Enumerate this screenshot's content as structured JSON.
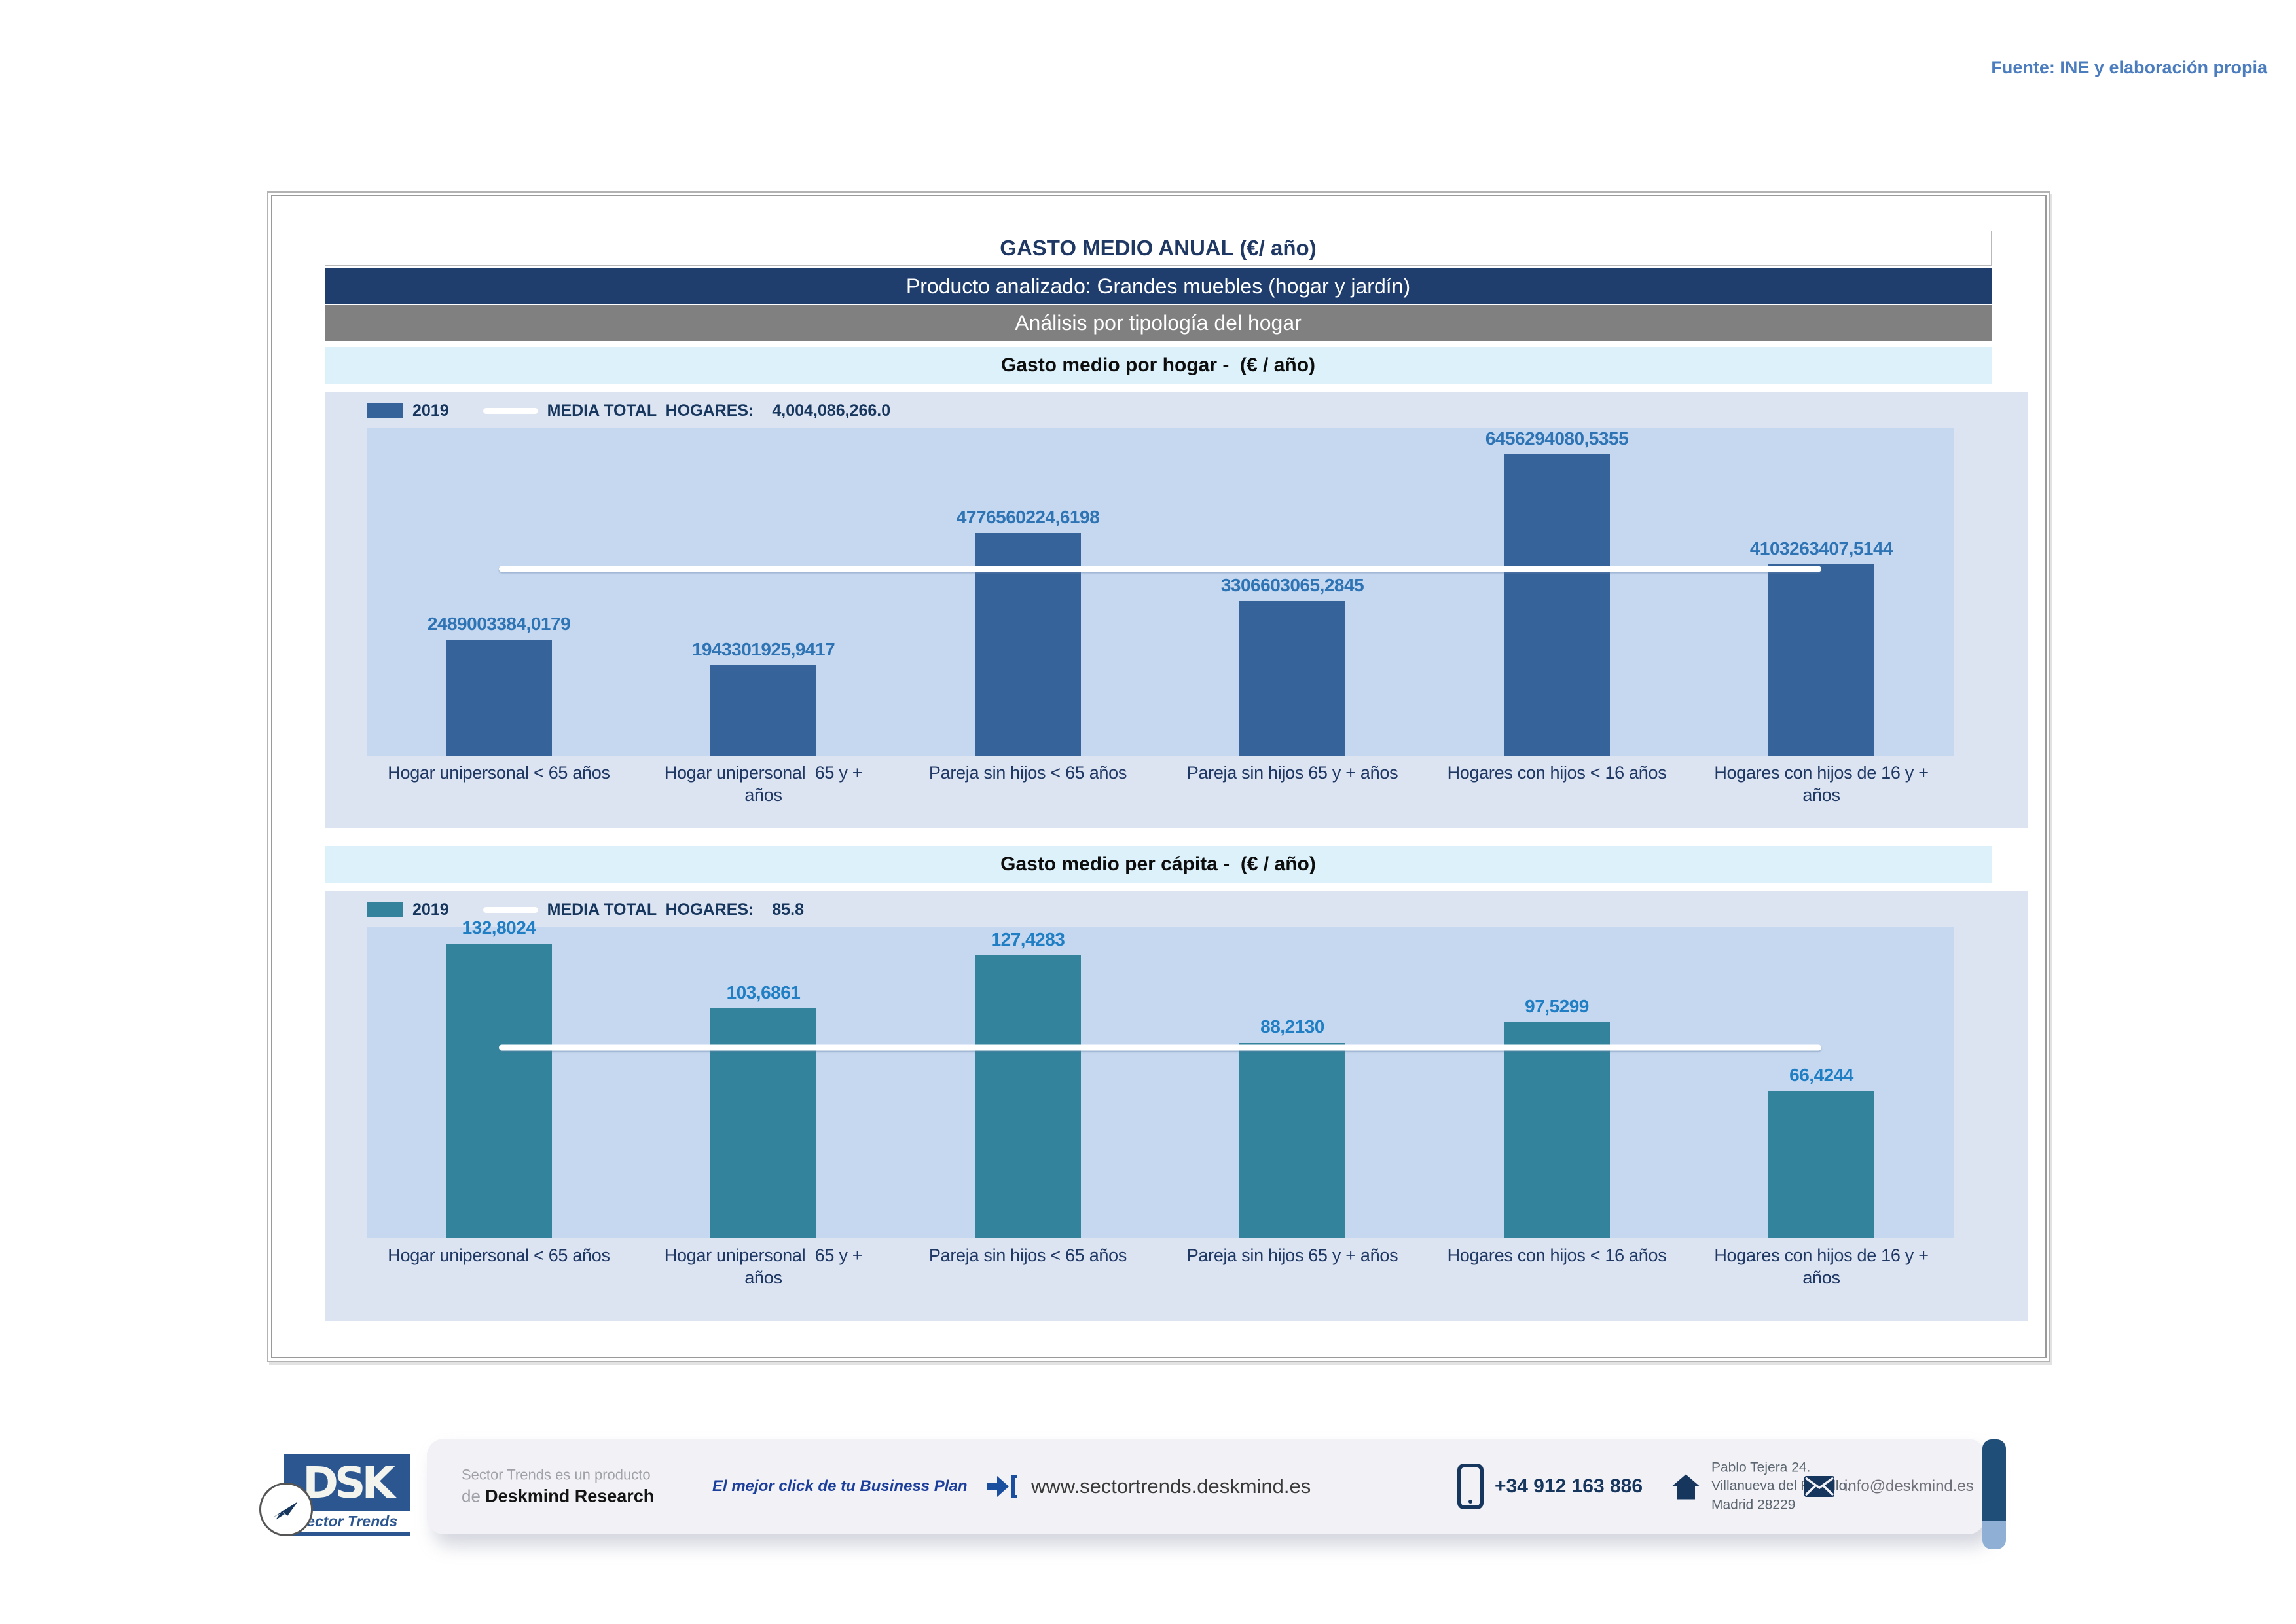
{
  "page": {
    "source_note": "Fuente: INE y elaboración propia"
  },
  "header": {
    "title": "GASTO MEDIO ANUAL (€/ año)",
    "product_banner": "Producto analizado: Grandes muebles (hogar y jardín)",
    "analysis_banner": "Análisis por tipología del hogar"
  },
  "colors": {
    "banner_navy": "#1F3E6E",
    "banner_gray": "#808080",
    "section_cyan": "#DCF1FA",
    "chart_outer_bg": "#DCE4F2",
    "chart_inner_bg": "#C6D8EF",
    "media_line": "#FFFFFF",
    "category_label": "#1F3864",
    "source_note": "#4A7CBE",
    "footer_icon_navy": "#17365D"
  },
  "chart_data": [
    {
      "type": "bar",
      "section_title": "Gasto medio por hogar -  (€ / año)",
      "legend": {
        "series_label": "2019",
        "media_label": "MEDIA TOTAL  HOGARES:",
        "media_value_label": "4,004,086,266.0"
      },
      "categories": [
        "Hogar unipersonal < 65 años",
        "Hogar unipersonal  65 y + años",
        "Pareja sin hijos < 65 años",
        "Pareja sin hijos 65 y + años",
        "Hogares con hijos < 16 años",
        "Hogares con hijos de 16 y + años"
      ],
      "series": [
        {
          "name": "2019",
          "values": [
            2489003384.0179,
            1943301925.9417,
            4776560224.6198,
            3306603065.2845,
            6456294080.5355,
            4103263407.5144
          ]
        }
      ],
      "value_labels": [
        "2489003384,0179",
        "1943301925,9417",
        "4776560224,6198",
        "3306603065,2845",
        "6456294080,5355",
        "4103263407,5144"
      ],
      "media_total": 4004086266.0,
      "ylim": [
        0,
        7017711000
      ],
      "grid": false,
      "legend_position": "top-left",
      "bar_color": "#36639A",
      "value_label_color": "#2E74B5"
    },
    {
      "type": "bar",
      "section_title": "Gasto medio per cápita -  (€ / año)",
      "legend": {
        "series_label": "2019",
        "media_label": "MEDIA TOTAL  HOGARES:",
        "media_value_label": "85.8"
      },
      "categories": [
        "Hogar unipersonal < 65 años",
        "Hogar unipersonal  65 y + años",
        "Pareja sin hijos < 65 años",
        "Pareja sin hijos 65 y + años",
        "Hogares con hijos < 16 años",
        "Hogares con hijos de 16 y + años"
      ],
      "series": [
        {
          "name": "2019",
          "values": [
            132.8024,
            103.6861,
            127.4283,
            88.213,
            97.5299,
            66.4244
          ]
        }
      ],
      "value_labels": [
        "132,8024",
        "103,6861",
        "127,4283",
        "88,2130",
        "97,5299",
        "66,4244"
      ],
      "media_total": 85.8,
      "ylim": [
        0,
        140.24
      ],
      "grid": false,
      "legend_position": "top-left",
      "bar_color": "#32839B",
      "value_label_color": "#1F7EC4"
    }
  ],
  "footer": {
    "logo": {
      "acronym": "DSK",
      "brand": "Sector Trends"
    },
    "product_line_1": "Sector Trends es un producto",
    "product_line_2_prefix": "de ",
    "product_line_2_brand": "Deskmind Research",
    "tagline": "El mejor click de tu Business Plan",
    "website": "www.sectortrends.deskmind.es",
    "phone": "+34 912 163 886",
    "address_lines": [
      "Pablo Tejera 24.",
      "Villanueva del Pardillo.",
      "Madrid 28229"
    ],
    "email": "info@deskmind.es"
  }
}
